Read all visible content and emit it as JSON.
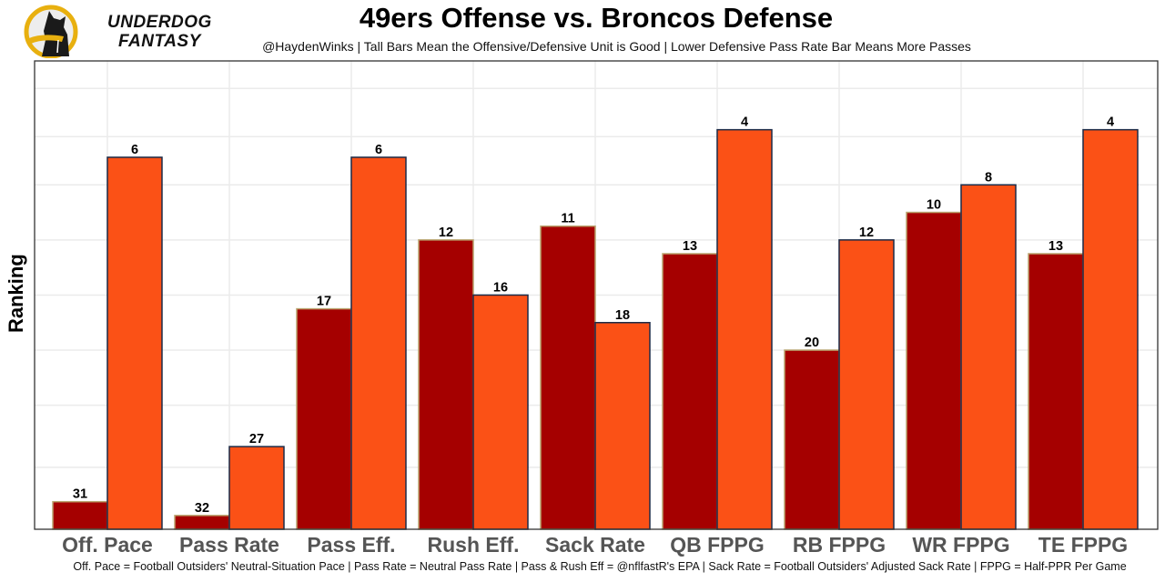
{
  "header": {
    "logo_line1": "UNDERDOG",
    "logo_line2": "FANTASY",
    "logo_icon": "dog-silhouette-icon"
  },
  "footer_note": "Off. Pace = Football Outsiders' Neutral-Situation Pace | Pass Rate = Neutral Pass Rate | Pass & Rush Eff = @nflfastR's EPA | Sack Rate = Football Outsiders' Adjusted Sack Rate | FPPG = Half-PPR Per Game",
  "colors": {
    "offense_fill": "#A50000",
    "offense_border": "#B9A46E",
    "defense_fill": "#FB5116",
    "defense_border": "#1B2B48",
    "grid": "#EBEBEB",
    "tick_text": "#555555"
  },
  "chart_data": {
    "type": "bar",
    "title": "49ers Offense vs. Broncos Defense",
    "subtitle": "@HaydenWinks | Tall Bars Mean the Offensive/Defensive Unit is Good | Lower Defensive Pass Rate Bar Means More Passes",
    "xlabel": "",
    "ylabel": "Ranking",
    "y_reversed_rank": true,
    "rank_range": [
      1,
      32
    ],
    "grid": true,
    "legend": "none",
    "categories": [
      "Off. Pace",
      "Pass Rate",
      "Pass Eff.",
      "Rush Eff.",
      "Sack Rate",
      "QB FPPG",
      "RB FPPG",
      "WR FPPG",
      "TE FPPG"
    ],
    "series": [
      {
        "name": "49ers Offense",
        "values": [
          31,
          32,
          17,
          12,
          11,
          13,
          20,
          10,
          13
        ]
      },
      {
        "name": "Broncos Defense",
        "values": [
          6,
          27,
          6,
          16,
          18,
          4,
          12,
          8,
          4
        ]
      }
    ]
  }
}
